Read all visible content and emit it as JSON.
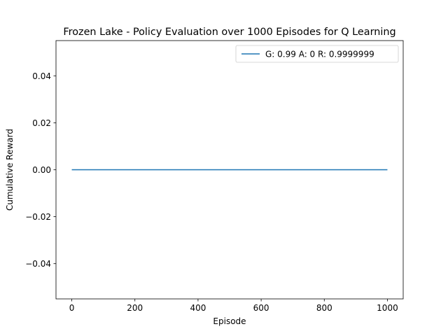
{
  "chart_data": {
    "type": "line",
    "title": "Frozen Lake - Policy Evaluation over 1000 Episodes for Q Learning",
    "xlabel": "Episode",
    "ylabel": "Cumulative Reward",
    "xlim": [
      -50,
      1050
    ],
    "ylim": [
      -0.055,
      0.055
    ],
    "x_ticks": [
      0,
      200,
      400,
      600,
      800,
      1000
    ],
    "x_tick_labels": [
      "0",
      "200",
      "400",
      "600",
      "800",
      "1000"
    ],
    "y_ticks": [
      -0.04,
      -0.02,
      0.0,
      0.02,
      0.04
    ],
    "y_tick_labels": [
      "−0.04",
      "−0.02",
      "0.00",
      "0.02",
      "0.04"
    ],
    "grid": false,
    "legend_position": "top-right",
    "series": [
      {
        "name": "G: 0.99 A: 0 R: 0.9999999",
        "color": "#1f77b4",
        "x": [
          0,
          1000
        ],
        "y": [
          0.0,
          0.0
        ]
      }
    ]
  }
}
